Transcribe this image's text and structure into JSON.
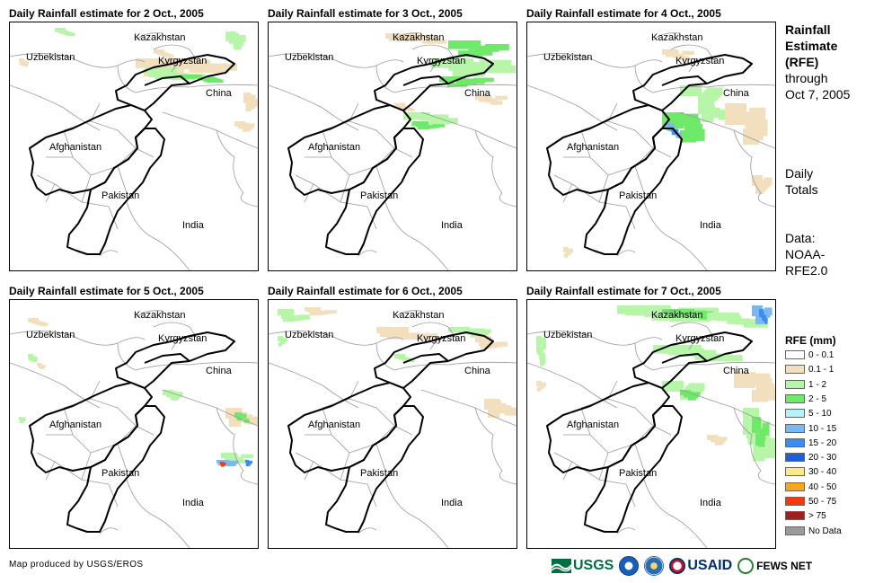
{
  "panels": [
    {
      "title": "Daily Rainfall estimate for 2 Oct., 2005"
    },
    {
      "title": "Daily Rainfall estimate for 3 Oct., 2005"
    },
    {
      "title": "Daily Rainfall estimate for 4 Oct., 2005"
    },
    {
      "title": "Daily Rainfall estimate for 5 Oct., 2005"
    },
    {
      "title": "Daily Rainfall estimate for 6 Oct., 2005"
    },
    {
      "title": "Daily Rainfall estimate for 7 Oct., 2005"
    }
  ],
  "places": {
    "kazakhstan": "Kazakhstan",
    "uzbekistan": "Uzbekistan",
    "kyrgyzstan": "Kyrgyzstan",
    "china": "China",
    "afghanistan": "Afghanistan",
    "pakistan": "Pakistan",
    "india": "India"
  },
  "side": {
    "title_lines": [
      "Rainfall",
      "Estimate",
      "(RFE)"
    ],
    "through": [
      "through",
      "Oct 7, 2005"
    ],
    "daily": [
      "Daily",
      "Totals"
    ],
    "data": [
      "Data:",
      "NOAA-",
      "RFE2.0"
    ]
  },
  "legend": {
    "title": "RFE (mm)",
    "items": [
      {
        "label": "0 - 0.1",
        "color": "#ffffff"
      },
      {
        "label": "0.1 - 1",
        "color": "#f2dfbd"
      },
      {
        "label": "1 - 2",
        "color": "#b7f5a8"
      },
      {
        "label": "2 - 5",
        "color": "#6fe96a"
      },
      {
        "label": "5 - 10",
        "color": "#b8f1f6"
      },
      {
        "label": "10 - 15",
        "color": "#79b8f2"
      },
      {
        "label": "15 - 20",
        "color": "#3c8df0"
      },
      {
        "label": "20 - 30",
        "color": "#1d5fd6"
      },
      {
        "label": "30 - 40",
        "color": "#fbe98a"
      },
      {
        "label": "40 - 50",
        "color": "#f9a61a"
      },
      {
        "label": "50 - 75",
        "color": "#f23a0e"
      },
      {
        "label": "> 75",
        "color": "#a51d1d"
      },
      {
        "label": "No Data",
        "color": "#9b9b9b"
      }
    ]
  },
  "footer": {
    "credit": "Map produced by USGS/EROS",
    "logos": {
      "usgs": "USGS",
      "usaid": "USAID",
      "fews": "FEWS NET"
    }
  },
  "colors": {
    "light": "#f2dfbd",
    "green1": "#b7f5a8",
    "green2": "#6fe96a",
    "blue1": "#79b8f2",
    "blue2": "#3c8df0",
    "red": "#f23a0e"
  }
}
